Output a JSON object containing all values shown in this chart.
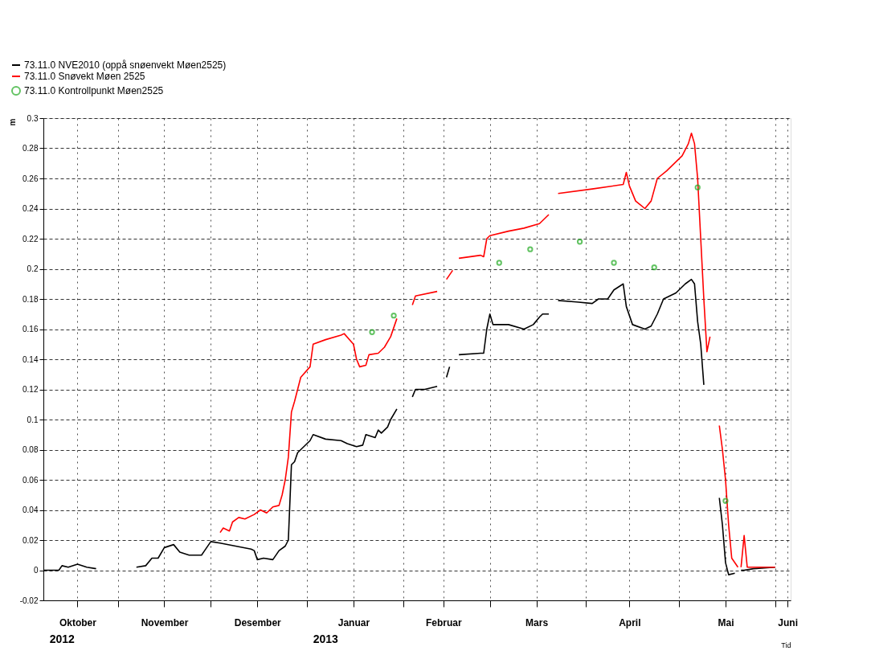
{
  "chart_data": {
    "type": "line",
    "xlabel": "Tid",
    "ylabel": "m",
    "legend": "top left",
    "grid": true,
    "xlim": [
      "2012-10-08",
      "2013-06-06"
    ],
    "xticks": [
      {
        "value": "2012-11-01",
        "label": null
      },
      {
        "value": "2012-12-01",
        "label": null
      },
      {
        "value": "2013-01-01",
        "label": null
      },
      {
        "value": "2013-02-01",
        "label": null
      },
      {
        "value": "2013-03-01",
        "label": null
      },
      {
        "value": "2013-04-01",
        "label": null
      },
      {
        "value": "2013-05-01",
        "label": null
      },
      {
        "value": "2013-06-01",
        "label": null
      },
      {
        "value": "2012-10-19",
        "label": "Oktober"
      },
      {
        "value": "2012-11-16",
        "label": "November"
      },
      {
        "value": "2012-12-16",
        "label": "Desember"
      },
      {
        "value": "2013-01-16",
        "label": "Januar"
      },
      {
        "value": "2013-02-14",
        "label": "Februar"
      },
      {
        "value": "2013-03-16",
        "label": "Mars"
      },
      {
        "value": "2013-04-15",
        "label": "April"
      },
      {
        "value": "2013-05-16",
        "label": "Mai"
      },
      {
        "value": "2013-06-05",
        "label": "Juni"
      }
    ],
    "ylim": [
      -0.02,
      0.3
    ],
    "yticks": [
      -0.02,
      0,
      0.02,
      0.04,
      0.06,
      0.08,
      0.1,
      0.12,
      0.14,
      0.16,
      0.18,
      0.2,
      0.22,
      0.24,
      0.26,
      0.28,
      0.3
    ],
    "annotations": [
      "2012",
      "2013"
    ],
    "series": [
      {
        "name": "73.11.0 NVE2010 (oppå snøenvekt Møen2525)",
        "color": "#000000",
        "marker": "none",
        "line_style": "solid",
        "x": [
          "2012-10-08",
          "2012-10-13",
          "2012-10-14",
          "2012-10-16",
          "2012-10-19",
          "2012-10-22",
          "2012-10-25",
          "2012-11-01",
          "2012-11-07",
          "2012-11-10",
          "2012-11-12",
          "2012-11-14",
          "2012-11-16",
          "2012-11-19",
          "2012-11-21",
          "2012-11-24",
          "2012-11-28",
          "2012-11-29",
          "2012-12-01",
          "2012-12-04",
          "2012-12-09",
          "2012-12-14",
          "2012-12-15",
          "2012-12-16",
          "2012-12-18",
          "2012-12-21",
          "2012-12-23",
          "2012-12-25",
          "2012-12-26",
          "2012-12-27",
          "2012-12-28",
          "2012-12-29",
          "2012-12-31",
          "2013-01-02",
          "2013-01-03",
          "2013-01-07",
          "2013-01-12",
          "2013-01-14",
          "2013-01-17",
          "2013-01-19",
          "2013-01-20",
          "2013-01-23",
          "2013-01-24",
          "2013-01-25",
          "2013-01-27",
          "2013-01-28",
          "2013-01-30",
          "2013-02-02",
          "2013-02-04",
          "2013-02-05",
          "2013-02-08",
          "2013-02-12",
          "2013-02-13",
          "2013-02-15",
          "2013-02-16",
          "2013-02-18",
          "2013-02-19",
          "2013-02-26",
          "2013-02-27",
          "2013-02-28",
          "2013-03-01",
          "2013-03-02",
          "2013-03-07",
          "2013-03-12",
          "2013-03-15",
          "2013-03-17",
          "2013-03-18",
          "2013-03-20",
          "2013-03-21",
          "2013-03-23",
          "2013-03-29",
          "2013-04-03",
          "2013-04-05",
          "2013-04-08",
          "2013-04-10",
          "2013-04-13",
          "2013-04-14",
          "2013-04-16",
          "2013-04-20",
          "2013-04-22",
          "2013-04-24",
          "2013-04-26",
          "2013-04-30",
          "2013-05-03",
          "2013-05-05",
          "2013-05-06",
          "2013-05-07",
          "2013-05-08",
          "2013-05-09",
          "2013-05-12",
          "2013-05-14",
          "2013-05-15",
          "2013-05-16",
          "2013-05-17",
          "2013-05-19",
          "2013-05-20",
          "2013-05-21",
          "2013-05-22",
          "2013-05-25",
          "2013-06-01"
        ],
        "values": [
          0,
          0,
          0.003,
          0.002,
          0.004,
          0.002,
          0.001,
          null,
          0.002,
          0.003,
          0.008,
          0.008,
          0.015,
          0.017,
          0.012,
          0.01,
          0.01,
          0.013,
          0.019,
          0.018,
          0.016,
          0.014,
          0.013,
          0.007,
          0.008,
          0.007,
          0.013,
          0.016,
          0.02,
          0.07,
          0.072,
          0.078,
          0.082,
          0.086,
          0.09,
          0.087,
          0.086,
          0.084,
          0.082,
          0.083,
          0.09,
          0.088,
          0.093,
          0.091,
          0.095,
          0.1,
          0.107,
          null,
          0.115,
          0.12,
          0.12,
          0.122,
          null,
          0.128,
          0.135,
          null,
          0.143,
          0.144,
          0.144,
          0.16,
          0.17,
          0.163,
          0.163,
          0.16,
          0.163,
          0.168,
          0.17,
          0.17,
          null,
          0.179,
          0.178,
          0.177,
          0.18,
          0.18,
          0.186,
          0.19,
          0.175,
          0.163,
          0.16,
          0.162,
          0.17,
          0.18,
          0.184,
          0.19,
          0.193,
          0.19,
          0.165,
          0.15,
          0.123,
          null,
          0.048,
          0.03,
          0.005,
          -0.003,
          -0.002,
          null,
          0,
          0,
          0.001,
          0.002
        ]
      },
      {
        "name": "73.11.0 Snøvekt Møen 2525",
        "color": "#ff0000",
        "marker": "none",
        "line_style": "solid",
        "x": [
          "2012-12-04",
          "2012-12-05",
          "2012-12-07",
          "2012-12-08",
          "2012-12-10",
          "2012-12-12",
          "2012-12-15",
          "2012-12-17",
          "2012-12-19",
          "2012-12-21",
          "2012-12-23",
          "2012-12-24",
          "2012-12-25",
          "2012-12-26",
          "2012-12-27",
          "2012-12-28",
          "2012-12-29",
          "2012-12-30",
          "2013-01-02",
          "2013-01-03",
          "2013-01-07",
          "2013-01-12",
          "2013-01-13",
          "2013-01-16",
          "2013-01-17",
          "2013-01-18",
          "2013-01-20",
          "2013-01-21",
          "2013-01-24",
          "2013-01-26",
          "2013-01-28",
          "2013-01-30",
          "2013-02-02",
          "2013-02-04",
          "2013-02-05",
          "2013-02-12",
          "2013-02-13",
          "2013-02-15",
          "2013-02-17",
          "2013-02-18",
          "2013-02-19",
          "2013-02-26",
          "2013-02-27",
          "2013-02-28",
          "2013-03-01",
          "2013-03-07",
          "2013-03-12",
          "2013-03-17",
          "2013-03-20",
          "2013-03-21",
          "2013-03-23",
          "2013-04-03",
          "2013-04-13",
          "2013-04-14",
          "2013-04-15",
          "2013-04-17",
          "2013-04-20",
          "2013-04-22",
          "2013-04-24",
          "2013-04-27",
          "2013-05-02",
          "2013-05-04",
          "2013-05-05",
          "2013-05-06",
          "2013-05-07",
          "2013-05-08",
          "2013-05-09",
          "2013-05-10",
          "2013-05-11",
          "2013-05-12",
          "2013-05-14",
          "2013-05-15",
          "2013-05-16",
          "2013-05-17",
          "2013-05-18",
          "2013-05-20",
          "2013-05-20T12:00",
          "2013-05-21",
          "2013-05-22",
          "2013-05-23",
          "2013-06-01"
        ],
        "values": [
          0.025,
          0.028,
          0.026,
          0.032,
          0.035,
          0.034,
          0.037,
          0.04,
          0.038,
          0.042,
          0.043,
          0.05,
          0.06,
          0.075,
          0.105,
          0.112,
          0.12,
          0.128,
          0.135,
          0.15,
          0.153,
          0.156,
          0.157,
          0.15,
          0.14,
          0.135,
          0.136,
          0.143,
          0.144,
          0.148,
          0.155,
          0.167,
          null,
          0.176,
          0.182,
          0.185,
          null,
          0.193,
          0.199,
          null,
          0.207,
          0.209,
          0.208,
          0.22,
          0.222,
          0.225,
          0.227,
          0.23,
          0.236,
          null,
          0.25,
          0.253,
          0.256,
          0.264,
          0.255,
          0.245,
          0.24,
          0.245,
          0.26,
          0.265,
          0.275,
          0.283,
          0.29,
          0.283,
          0.26,
          0.22,
          0.18,
          0.145,
          0.155,
          null,
          0.096,
          0.08,
          0.06,
          0.03,
          0.008,
          0.002,
          null,
          0.002,
          0.023,
          0.002,
          0.002
        ]
      },
      {
        "name": "73.11.0 Kontrollpunkt Møen2525",
        "color": "#22aa22",
        "type": "scatter",
        "marker": "circle",
        "x": [
          "2013-01-22",
          "2013-01-29",
          "2013-03-04",
          "2013-03-14",
          "2013-03-30",
          "2013-04-10",
          "2013-04-23",
          "2013-05-07",
          "2013-05-16"
        ],
        "values": [
          0.158,
          0.169,
          0.204,
          0.213,
          0.218,
          0.204,
          0.201,
          0.254,
          0.046
        ]
      }
    ]
  }
}
